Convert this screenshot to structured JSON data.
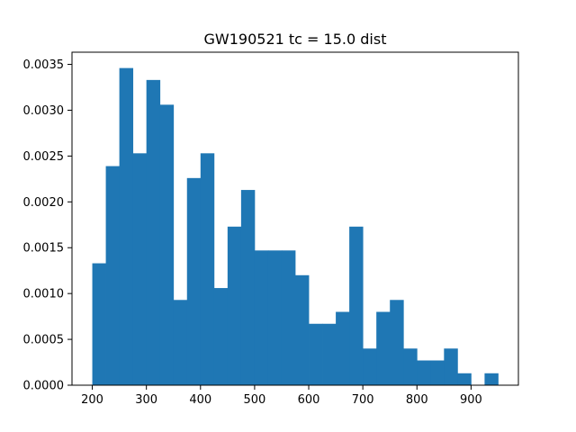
{
  "chart_data": {
    "type": "bar",
    "title": "GW190521 tc = 15.0 dist",
    "xlabel": "",
    "ylabel": "",
    "bar_color": "#1f77b4",
    "xlim": [
      162.5,
      987.5
    ],
    "ylim": [
      0,
      0.003633
    ],
    "grid": false,
    "legend": "none",
    "xticks": [
      200,
      300,
      400,
      500,
      600,
      700,
      800,
      900
    ],
    "xtick_labels": [
      "200",
      "300",
      "400",
      "500",
      "600",
      "700",
      "800",
      "900"
    ],
    "yticks": [
      0,
      0.0005,
      0.001,
      0.0015,
      0.002,
      0.0025,
      0.003,
      0.0035
    ],
    "ytick_labels": [
      "0.0000",
      "0.0005",
      "0.0010",
      "0.0015",
      "0.0020",
      "0.0025",
      "0.0030",
      "0.0035"
    ],
    "bin_edges": [
      200,
      225,
      250,
      275,
      300,
      325,
      350,
      375,
      400,
      425,
      450,
      475,
      500,
      525,
      550,
      575,
      600,
      625,
      650,
      675,
      700,
      725,
      750,
      775,
      800,
      825,
      850,
      875,
      900,
      925,
      950
    ],
    "values": [
      0.00133,
      0.00239,
      0.00346,
      0.00253,
      0.00333,
      0.00306,
      0.00093,
      0.00226,
      0.00253,
      0.00106,
      0.00173,
      0.00213,
      0.00147,
      0.00147,
      0.00147,
      0.0012,
      0.00067,
      0.00067,
      0.0008,
      0.00173,
      0.0004,
      0.0008,
      0.00093,
      0.0004,
      0.00027,
      0.00027,
      0.0004,
      0.00013,
      0.0,
      0.00013
    ]
  }
}
